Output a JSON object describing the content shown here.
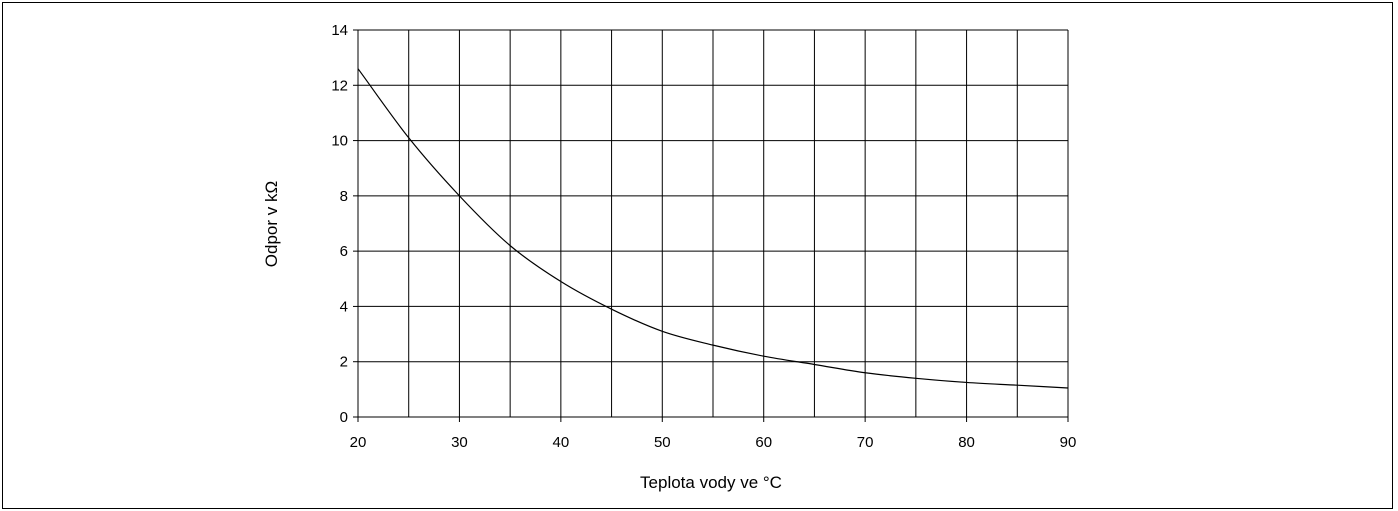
{
  "chart_data": {
    "type": "line",
    "title": "",
    "xlabel": "Teplota vody ve °C",
    "ylabel": "Odpor v kΩ",
    "xlim": [
      20,
      90
    ],
    "ylim": [
      0,
      14
    ],
    "x_ticks": [
      20,
      30,
      40,
      50,
      60,
      70,
      80,
      90
    ],
    "y_ticks": [
      0,
      2,
      4,
      6,
      8,
      10,
      12,
      14
    ],
    "x_grid_step": 5,
    "y_grid_step": 2,
    "grid": true,
    "series": [
      {
        "x": [
          20,
          25,
          30,
          35,
          40,
          45,
          50,
          55,
          60,
          65,
          70,
          75,
          80,
          85,
          90
        ],
        "y": [
          12.6,
          10.1,
          8.0,
          6.2,
          4.9,
          3.9,
          3.1,
          2.6,
          2.2,
          1.9,
          1.6,
          1.4,
          1.25,
          1.15,
          1.05
        ]
      }
    ],
    "line_color": "#000000"
  }
}
